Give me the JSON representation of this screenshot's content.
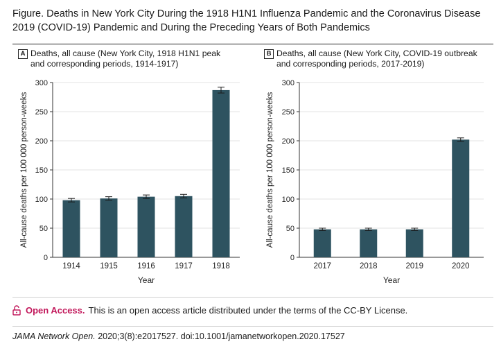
{
  "figure": {
    "title": "Figure. Deaths in New York City During the 1918 H1N1 Influenza Pandemic and the Coronavirus Disease 2019 (COVID-19) Pandemic and During the Preceding Years of Both Pandemics"
  },
  "chart_data": [
    {
      "type": "bar",
      "panel_letter": "A",
      "title_line1": "Deaths, all cause  (New York City, 1918 H1N1 peak",
      "title_line2": "and corresponding periods, 1914-1917)",
      "categories": [
        "1914",
        "1915",
        "1916",
        "1917",
        "1918"
      ],
      "values": [
        98,
        101,
        104,
        105,
        287
      ],
      "error": [
        3,
        3,
        3,
        3,
        5
      ],
      "xlabel": "Year",
      "ylabel": "All-cause deaths per 100 000 person-weeks",
      "ylim": [
        0,
        300
      ],
      "yticks": [
        0,
        50,
        100,
        150,
        200,
        250,
        300
      ],
      "bar_color": "#2e5360"
    },
    {
      "type": "bar",
      "panel_letter": "B",
      "title_line1": "Deaths, all cause (New York City, COVID-19 outbreak",
      "title_line2": "and corresponding periods, 2017-2019)",
      "categories": [
        "2017",
        "2018",
        "2019",
        "2020"
      ],
      "values": [
        48,
        48,
        48,
        202
      ],
      "error": [
        2,
        2,
        2,
        3
      ],
      "xlabel": "Year",
      "ylabel": "All-cause deaths per 100 000 person-weeks",
      "ylim": [
        0,
        300
      ],
      "yticks": [
        0,
        50,
        100,
        150,
        200,
        250,
        300
      ],
      "bar_color": "#2e5360"
    }
  ],
  "footer": {
    "open_access_label": "Open Access.",
    "open_access_text": "This is an open access article distributed under the terms of the CC-BY License.",
    "accent_color": "#c2185b",
    "journal": "JAMA Network Open.",
    "citation": "2020;3(8):e2017527. doi:10.1001/jamanetworkopen.2020.17527"
  }
}
